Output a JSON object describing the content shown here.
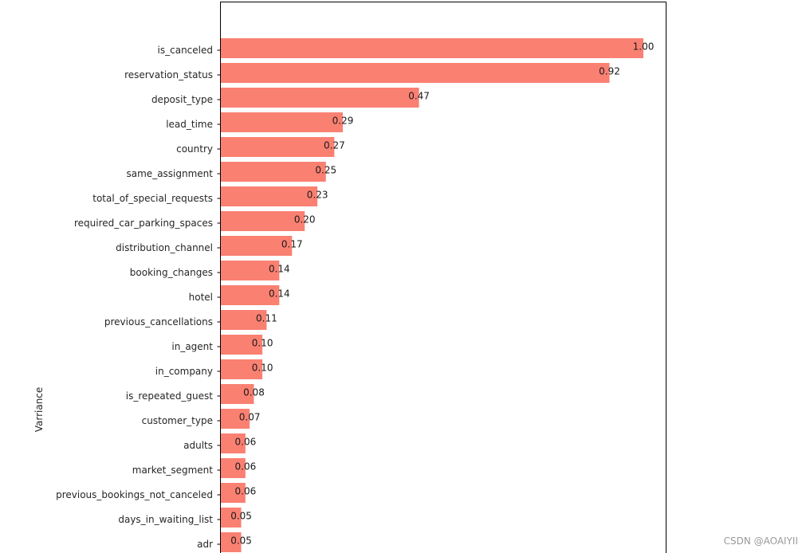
{
  "chart_data": {
    "type": "bar",
    "orientation": "horizontal",
    "ylabel": "Varriance",
    "xlim": [
      0,
      1.05
    ],
    "grid": false,
    "bar_color": "#fa8072",
    "categories": [
      "is_canceled",
      "reservation_status",
      "deposit_type",
      "lead_time",
      "country",
      "same_assignment",
      "total_of_special_requests",
      "required_car_parking_spaces",
      "distribution_channel",
      "booking_changes",
      "hotel",
      "previous_cancellations",
      "in_agent",
      "in_company",
      "is_repeated_guest",
      "customer_type",
      "adults",
      "market_segment",
      "previous_bookings_not_canceled",
      "days_in_waiting_list",
      "adr"
    ],
    "values": [
      1.0,
      0.92,
      0.47,
      0.29,
      0.27,
      0.25,
      0.23,
      0.2,
      0.17,
      0.14,
      0.14,
      0.11,
      0.1,
      0.1,
      0.08,
      0.07,
      0.06,
      0.06,
      0.06,
      0.05,
      0.05
    ],
    "value_labels": [
      "1.00",
      "0.92",
      "0.47",
      "0.29",
      "0.27",
      "0.25",
      "0.23",
      "0.20",
      "0.17",
      "0.14",
      "0.14",
      "0.11",
      "0.10",
      "0.10",
      "0.08",
      "0.07",
      "0.06",
      "0.06",
      "0.06",
      "0.05",
      "0.05"
    ]
  },
  "watermark": "CSDN @AOAIYII"
}
